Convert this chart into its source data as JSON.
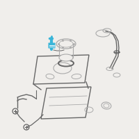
{
  "bg_color": "#f0eeeb",
  "highlight_color": "#3ab5d8",
  "line_color": "#aaaaaa",
  "dark_line": "#666666",
  "fig_w": 2.0,
  "fig_h": 2.0,
  "dpi": 100
}
